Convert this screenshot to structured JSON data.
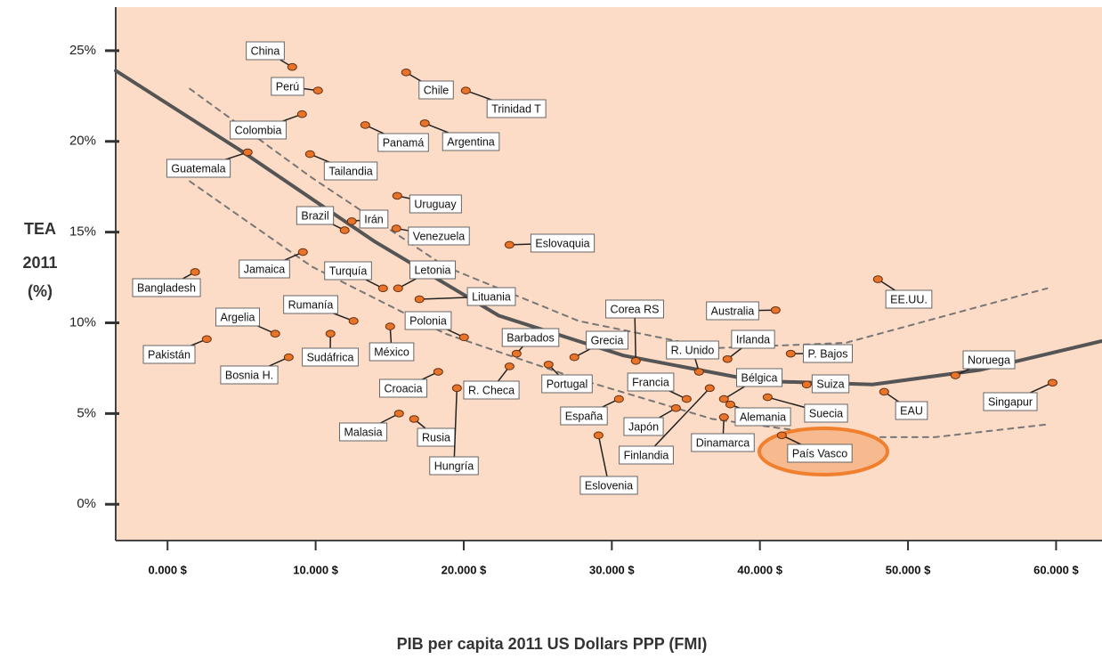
{
  "chart_data": {
    "type": "scatter",
    "x_label": "PIB per capita 2011 US Dollars PPP (FMI)",
    "y_label": [
      "TEA",
      "2011",
      "(%)"
    ],
    "xlim": [
      -3500,
      63100
    ],
    "ylim": [
      -2,
      27.4
    ],
    "xticks": [
      {
        "value": 0,
        "label": "0.000 $"
      },
      {
        "value": 10000,
        "label": "10.000 $"
      },
      {
        "value": 20000,
        "label": "20.000 $"
      },
      {
        "value": 30000,
        "label": "30.000 $"
      },
      {
        "value": 40000,
        "label": "40.000 $"
      },
      {
        "value": 50000,
        "label": "50.000 $"
      },
      {
        "value": 60000,
        "label": "60.000 $"
      }
    ],
    "yticks": [
      {
        "value": 0,
        "label": "0%"
      },
      {
        "value": 5,
        "label": "5%"
      },
      {
        "value": 10,
        "label": "10%"
      },
      {
        "value": 15,
        "label": "15%"
      },
      {
        "value": 20,
        "label": "20%"
      },
      {
        "value": 25,
        "label": "25%"
      }
    ],
    "color": "#e8742a",
    "points": {
      "names": [
        "China",
        "Perú",
        "Chile",
        "Trinidad T",
        "Colombia",
        "Panamá",
        "Argentina",
        "Guatemala",
        "Tailandia",
        "Uruguay",
        "Brazil",
        "Irán",
        "Venezuela",
        "Eslovaquia",
        "Bangladesh",
        "Jamaica",
        "Turquía",
        "Letonia",
        "Lituania",
        "Rumanía",
        "Argelia",
        "Polonia",
        "Pakistán",
        "Sudáfrica",
        "México",
        "Bosnia H.",
        "Croacia",
        "R. Checa",
        "Malasia",
        "Rusia",
        "Hungría",
        "Portugal",
        "Barbados",
        "Grecia",
        "Corea RS",
        "España",
        "Eslovenia",
        "Japón",
        "Francia",
        "Finlandia",
        "R. Unido",
        "Australia",
        "Irlanda",
        "Bélgica",
        "Alemania",
        "Dinamarca",
        "P. Bajos",
        "Suiza",
        "Suecia",
        "País Vasco",
        "EE.UU.",
        "Noruega",
        "EAU",
        "Singapur"
      ],
      "x": [
        8420,
        10160,
        16110,
        20140,
        9080,
        13350,
        17370,
        5410,
        9620,
        15510,
        11960,
        12440,
        15450,
        23090,
        1860,
        9140,
        14550,
        15570,
        17010,
        12560,
        7270,
        20020,
        2650,
        11000,
        15030,
        8180,
        18280,
        23090,
        15630,
        16650,
        19540,
        25730,
        23570,
        27470,
        31620,
        30480,
        29100,
        34330,
        35050,
        36610,
        35890,
        41060,
        37810,
        37570,
        38000,
        37570,
        42080,
        43160,
        40520,
        41480,
        47970,
        53200,
        48390,
        59760
      ],
      "y": [
        24.1,
        22.8,
        23.8,
        22.8,
        21.5,
        20.9,
        21.0,
        19.4,
        19.3,
        17.0,
        15.1,
        15.6,
        15.2,
        14.3,
        12.8,
        13.9,
        11.9,
        11.9,
        11.3,
        10.1,
        9.4,
        9.2,
        9.1,
        9.4,
        9.8,
        8.1,
        7.3,
        7.6,
        5.0,
        4.7,
        6.4,
        7.7,
        8.3,
        8.1,
        7.9,
        5.8,
        3.8,
        5.3,
        5.8,
        6.4,
        7.3,
        10.7,
        8.0,
        5.8,
        5.5,
        4.8,
        8.3,
        6.6,
        5.9,
        3.8,
        12.4,
        7.1,
        6.2,
        6.7
      ]
    },
    "curves": [
      {
        "style": "solid",
        "x": [
          -3500,
          4930,
          13950,
          22360,
          30780,
          39800,
          47610,
          54830,
          63100
        ],
        "y": [
          23.9,
          19.5,
          14.5,
          10.4,
          8.2,
          6.8,
          6.6,
          7.4,
          9.0
        ]
      },
      {
        "style": "dashed",
        "x": [
          1500,
          9740,
          18760,
          27770,
          36790,
          45810,
          54830,
          59400
        ],
        "y": [
          22.9,
          18.0,
          13.1,
          10.1,
          8.6,
          8.9,
          10.9,
          11.9
        ]
      },
      {
        "style": "dashed",
        "x": [
          1500,
          9740,
          18760,
          27770,
          36790,
          45810,
          51820,
          59400
        ],
        "y": [
          17.8,
          13.1,
          9.4,
          6.9,
          4.7,
          3.7,
          3.7,
          4.4
        ]
      }
    ]
  }
}
